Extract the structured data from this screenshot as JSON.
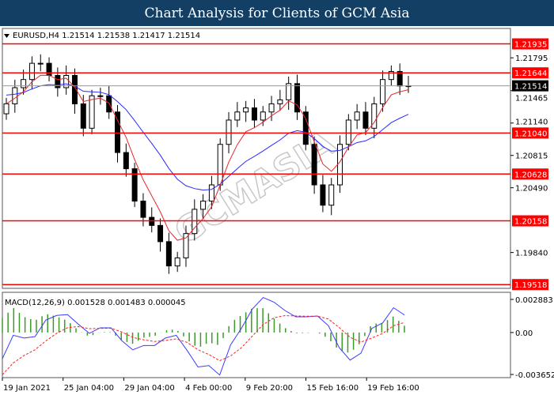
{
  "header": {
    "title": "Chart Analysis for Clients of GCM Asia"
  },
  "chart_data": {
    "type": "candlestick",
    "symbol_info": "EURUSD,H4  1.21514 1.21538 1.21417 1.21514",
    "ylim": [
      1.1948,
      1.2209
    ],
    "y_ticks": [
      "1.21795",
      "1.21465",
      "1.21140",
      "1.20815",
      "1.20490",
      "1.19840"
    ],
    "levels": [
      {
        "value": 1.21935,
        "label": "1.21935"
      },
      {
        "value": 1.21644,
        "label": "1.21644"
      },
      {
        "value": 1.2104,
        "label": "1.21040"
      },
      {
        "value": 1.20628,
        "label": "1.20628"
      },
      {
        "value": 1.20158,
        "label": "1.20158"
      },
      {
        "value": 1.19518,
        "label": "1.19518"
      }
    ],
    "current_price": {
      "value": 1.21514,
      "label": "1.21514"
    },
    "x_ticks": [
      "19 Jan 2021",
      "25 Jan 04:00",
      "29 Jan 04:00",
      "4 Feb 00:00",
      "9 Feb 20:00",
      "15 Feb 16:00",
      "19 Feb 16:00"
    ],
    "closes": [
      1.21333,
      1.21495,
      1.21577,
      1.2174,
      1.2174,
      1.21618,
      1.21495,
      1.21618,
      1.21333,
      1.21088,
      1.21414,
      1.21414,
      1.21251,
      1.20844,
      1.20681,
      1.20356,
      1.20193,
      1.20112,
      1.19949,
      1.19705,
      1.19786,
      1.2003,
      1.20274,
      1.20356,
      1.20519,
      1.20926,
      1.2117,
      1.21251,
      1.21292,
      1.2117,
      1.21251,
      1.21333,
      1.21373,
      1.21536,
      1.21251,
      1.20926,
      1.20519,
      1.20315,
      1.20519,
      1.20926,
      1.2117,
      1.21251,
      1.21088,
      1.21333,
      1.21577,
      1.21658,
      1.21512,
      1.21514
    ],
    "macd": {
      "label": "MACD(12,26,9) 0.001528 0.001483 0.000045",
      "y_ticks": [
        "0.002883",
        "0.00",
        "-0.003652"
      ],
      "ylim": [
        -0.003652,
        0.002883
      ],
      "main": [
        -0.00228,
        -0.00024,
        -0.00048,
        -0.00036,
        0.00108,
        0.00149,
        0.00156,
        0.00072,
        -7e-05,
        0.00041,
        0.00041,
        -0.00072,
        -0.00151,
        -0.00113,
        -0.00113,
        -0.00048,
        -0.00024,
        -0.00156,
        -0.003,
        -0.00288,
        -0.0037,
        -0.00108,
        0.00036,
        0.00204,
        0.00305,
        0.00264,
        0.00192,
        0.00137,
        0.00137,
        0.00144,
        0.0006,
        -0.00132,
        -0.0024,
        -0.0018,
        0.00036,
        0.00084,
        0.00216,
        0.00153
      ]
    },
    "watermark": "GCMASIA",
    "colors": {
      "level": "#ff0000",
      "fast_ma": "#e8262e",
      "slow_ma": "#2a2aff",
      "macd_main": "#3a3aff",
      "macd_signal": "#ff2020",
      "histogram": "#3c9a2a"
    }
  }
}
